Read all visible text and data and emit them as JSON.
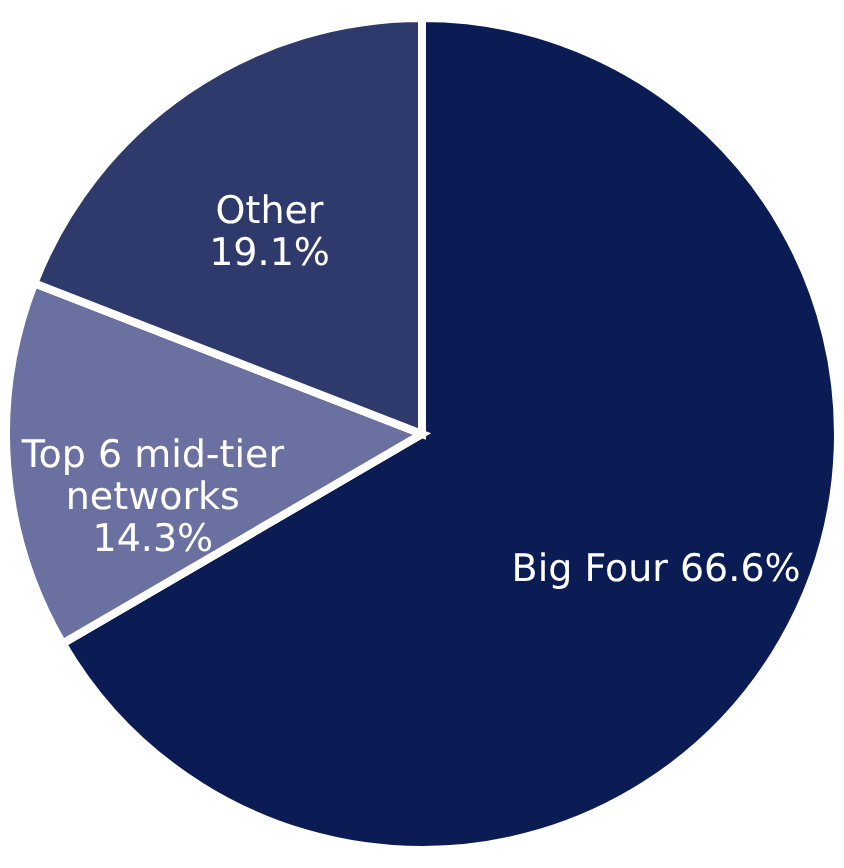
{
  "chart_data": {
    "type": "pie",
    "categories": [
      "Big Four",
      "Top 6 mid-tier networks",
      "Other"
    ],
    "values": [
      66.6,
      14.3,
      19.1
    ],
    "colors": [
      "#0b1b54",
      "#6a709f",
      "#2f3a6c"
    ],
    "value_labels": [
      "66.6%",
      "14.3%",
      "19.1%"
    ]
  }
}
